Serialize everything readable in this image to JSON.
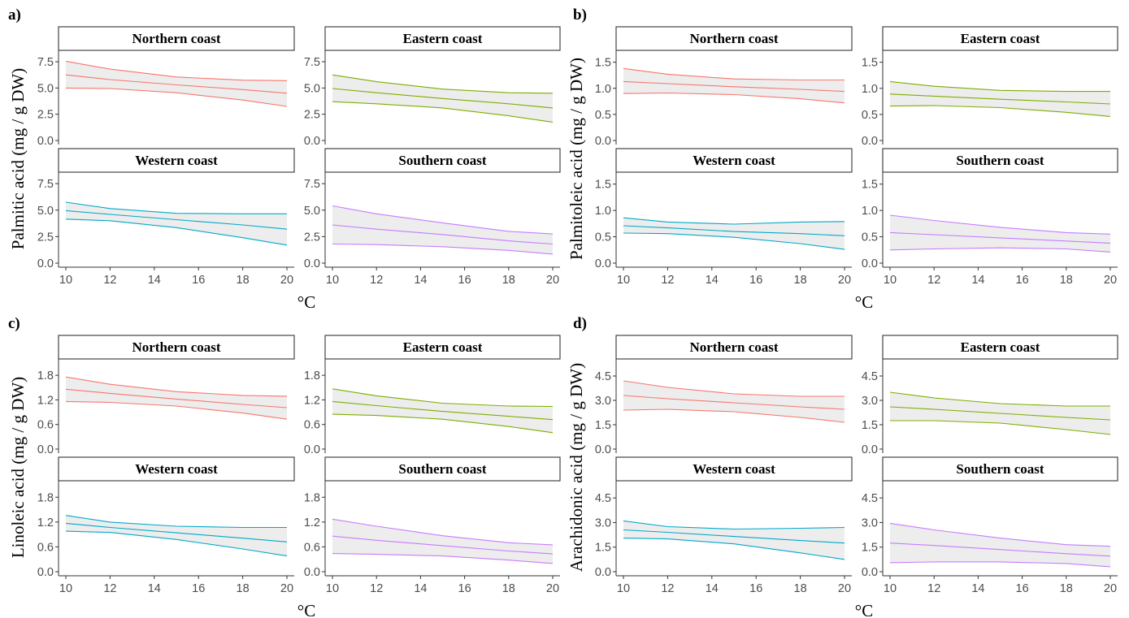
{
  "figure": {
    "x_unit": "°C",
    "facet_labels": [
      "Northern coast",
      "Eastern coast",
      "Western coast",
      "Southern coast"
    ],
    "colors": {
      "Northern coast": "#F8766D",
      "Eastern coast": "#7CAE00",
      "Western coast": "#00A9C9",
      "Southern coast": "#C77CFF",
      "ribbon": "#EDEDED",
      "strip_border": "#333333"
    }
  },
  "chart_data": [
    {
      "type": "line",
      "panel": "a)",
      "ylabel": "Palmitic acid (mg / g DW)",
      "x_ticks": [
        10,
        12,
        14,
        16,
        18,
        20
      ],
      "xlim": [
        10,
        20
      ],
      "y_ticks": [
        "0.0",
        "2.5",
        "5.0",
        "7.5"
      ],
      "ylim": [
        0,
        8.2
      ],
      "series": [
        {
          "name": "Northern coast",
          "x": [
            10,
            12,
            15,
            18,
            20
          ],
          "fit": [
            6.25,
            5.8,
            5.3,
            4.85,
            4.5
          ],
          "lower": [
            5.0,
            4.95,
            4.55,
            3.85,
            3.25
          ],
          "upper": [
            7.55,
            6.8,
            6.05,
            5.75,
            5.7
          ]
        },
        {
          "name": "Eastern coast",
          "x": [
            10,
            12,
            15,
            18,
            20
          ],
          "fit": [
            4.95,
            4.55,
            4.0,
            3.5,
            3.1
          ],
          "lower": [
            3.7,
            3.5,
            3.1,
            2.35,
            1.75
          ],
          "upper": [
            6.25,
            5.6,
            4.9,
            4.55,
            4.5
          ]
        },
        {
          "name": "Western coast",
          "x": [
            10,
            12,
            15,
            18,
            20
          ],
          "fit": [
            4.95,
            4.6,
            4.1,
            3.6,
            3.2
          ],
          "lower": [
            4.15,
            4.0,
            3.35,
            2.4,
            1.7
          ],
          "upper": [
            5.75,
            5.15,
            4.7,
            4.65,
            4.65
          ]
        },
        {
          "name": "Southern coast",
          "x": [
            10,
            12,
            15,
            18,
            20
          ],
          "fit": [
            3.6,
            3.2,
            2.7,
            2.1,
            1.8
          ],
          "lower": [
            1.8,
            1.75,
            1.55,
            1.2,
            0.85
          ],
          "upper": [
            5.4,
            4.65,
            3.8,
            3.0,
            2.75
          ]
        }
      ]
    },
    {
      "type": "line",
      "panel": "b)",
      "ylabel": "Palmitoleic acid (mg / g DW)",
      "x_ticks": [
        10,
        12,
        14,
        16,
        18,
        20
      ],
      "xlim": [
        10,
        20
      ],
      "y_ticks": [
        "0.0",
        "0.5",
        "1.0",
        "1.5"
      ],
      "ylim": [
        0,
        1.65
      ],
      "series": [
        {
          "name": "Northern coast",
          "x": [
            10,
            12,
            15,
            18,
            20
          ],
          "fit": [
            1.13,
            1.09,
            1.03,
            0.98,
            0.94
          ],
          "lower": [
            0.9,
            0.91,
            0.88,
            0.8,
            0.72
          ],
          "upper": [
            1.38,
            1.27,
            1.18,
            1.16,
            1.16
          ]
        },
        {
          "name": "Eastern coast",
          "x": [
            10,
            12,
            15,
            18,
            20
          ],
          "fit": [
            0.89,
            0.85,
            0.79,
            0.74,
            0.7
          ],
          "lower": [
            0.66,
            0.67,
            0.63,
            0.54,
            0.46
          ],
          "upper": [
            1.13,
            1.04,
            0.96,
            0.94,
            0.94
          ]
        },
        {
          "name": "Western coast",
          "x": [
            10,
            12,
            15,
            18,
            20
          ],
          "fit": [
            0.71,
            0.67,
            0.6,
            0.56,
            0.52
          ],
          "lower": [
            0.57,
            0.56,
            0.49,
            0.37,
            0.26
          ],
          "upper": [
            0.86,
            0.78,
            0.74,
            0.78,
            0.79
          ]
        },
        {
          "name": "Southern coast",
          "x": [
            10,
            12,
            15,
            18,
            20
          ],
          "fit": [
            0.58,
            0.54,
            0.48,
            0.42,
            0.38
          ],
          "lower": [
            0.25,
            0.27,
            0.29,
            0.27,
            0.21
          ],
          "upper": [
            0.91,
            0.81,
            0.68,
            0.58,
            0.55
          ]
        }
      ]
    },
    {
      "type": "line",
      "panel": "c)",
      "ylabel": "Linoleic acid (mg / g DW)",
      "x_ticks": [
        10,
        12,
        14,
        16,
        18,
        20
      ],
      "xlim": [
        10,
        20
      ],
      "y_ticks": [
        "0.0",
        "0.6",
        "1.2",
        "1.8"
      ],
      "ylim": [
        0,
        2.1
      ],
      "series": [
        {
          "name": "Northern coast",
          "x": [
            10,
            12,
            15,
            18,
            20
          ],
          "fit": [
            1.46,
            1.36,
            1.22,
            1.09,
            1.01
          ],
          "lower": [
            1.16,
            1.14,
            1.05,
            0.88,
            0.73
          ],
          "upper": [
            1.76,
            1.58,
            1.4,
            1.31,
            1.29
          ]
        },
        {
          "name": "Eastern coast",
          "x": [
            10,
            12,
            15,
            18,
            20
          ],
          "fit": [
            1.16,
            1.06,
            0.92,
            0.8,
            0.72
          ],
          "lower": [
            0.85,
            0.82,
            0.73,
            0.55,
            0.4
          ],
          "upper": [
            1.47,
            1.3,
            1.12,
            1.05,
            1.04
          ]
        },
        {
          "name": "Western coast",
          "x": [
            10,
            12,
            15,
            18,
            20
          ],
          "fit": [
            1.17,
            1.07,
            0.94,
            0.81,
            0.72
          ],
          "lower": [
            0.98,
            0.95,
            0.78,
            0.55,
            0.38
          ],
          "upper": [
            1.36,
            1.2,
            1.1,
            1.07,
            1.07
          ]
        },
        {
          "name": "Southern coast",
          "x": [
            10,
            12,
            15,
            18,
            20
          ],
          "fit": [
            0.86,
            0.76,
            0.63,
            0.5,
            0.43
          ],
          "lower": [
            0.44,
            0.42,
            0.38,
            0.28,
            0.2
          ],
          "upper": [
            1.27,
            1.1,
            0.87,
            0.7,
            0.65
          ]
        }
      ]
    },
    {
      "type": "line",
      "panel": "d)",
      "ylabel": "Arachidonic acid (mg / g DW)",
      "x_ticks": [
        10,
        12,
        14,
        16,
        18,
        20
      ],
      "xlim": [
        10,
        20
      ],
      "y_ticks": [
        "0.0",
        "1.5",
        "3.0",
        "4.5"
      ],
      "ylim": [
        0,
        5.3
      ],
      "series": [
        {
          "name": "Northern coast",
          "x": [
            10,
            12,
            15,
            18,
            20
          ],
          "fit": [
            3.3,
            3.1,
            2.85,
            2.6,
            2.45
          ],
          "lower": [
            2.4,
            2.45,
            2.3,
            1.95,
            1.65
          ],
          "upper": [
            4.2,
            3.8,
            3.4,
            3.25,
            3.25
          ]
        },
        {
          "name": "Eastern coast",
          "x": [
            10,
            12,
            15,
            18,
            20
          ],
          "fit": [
            2.6,
            2.45,
            2.2,
            1.95,
            1.8
          ],
          "lower": [
            1.75,
            1.75,
            1.6,
            1.2,
            0.9
          ],
          "upper": [
            3.5,
            3.15,
            2.8,
            2.65,
            2.65
          ]
        },
        {
          "name": "Western coast",
          "x": [
            10,
            12,
            15,
            18,
            20
          ],
          "fit": [
            2.55,
            2.4,
            2.15,
            1.9,
            1.75
          ],
          "lower": [
            2.05,
            2.0,
            1.7,
            1.15,
            0.75
          ],
          "upper": [
            3.1,
            2.75,
            2.6,
            2.65,
            2.7
          ]
        },
        {
          "name": "Southern coast",
          "x": [
            10,
            12,
            15,
            18,
            20
          ],
          "fit": [
            1.75,
            1.6,
            1.35,
            1.1,
            0.95
          ],
          "lower": [
            0.55,
            0.6,
            0.6,
            0.5,
            0.3
          ],
          "upper": [
            2.95,
            2.55,
            2.05,
            1.65,
            1.55
          ]
        }
      ]
    }
  ]
}
